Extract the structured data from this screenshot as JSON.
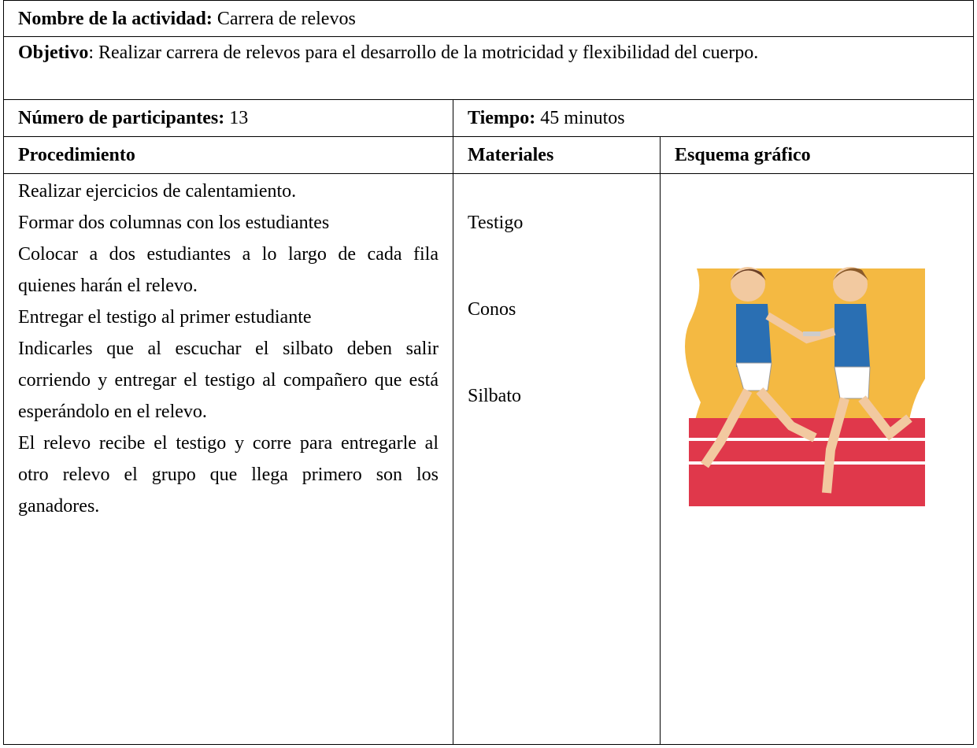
{
  "activity": {
    "name_label": "Nombre de la actividad:",
    "name": "Carrera de relevos",
    "objective_label": "Objetivo",
    "objective": ": Realizar carrera de relevos para el desarrollo de la motricidad y flexibilidad del cuerpo.",
    "participants_label": "Número de participantes:",
    "participants": "13",
    "time_label": "Tiempo:",
    "time": "45 minutos"
  },
  "table": {
    "headers": [
      "Procedimiento",
      "Materiales",
      "Esquema gráfico"
    ],
    "procedure": [
      "Realizar ejercicios de calentamiento.",
      "Formar dos columnas con los estudiantes",
      "Colocar a dos estudiantes a lo largo de cada fila quienes harán el relevo.",
      "Entregar el testigo al primer estudiante",
      "Indicarles que al escuchar el silbato deben salir corriendo y entregar el testigo al compañero que está esperándolo en el relevo.",
      "El relevo recibe el testigo y corre para entregarle al otro relevo el grupo que llega primero son los ganadores."
    ],
    "materials": [
      "Testigo",
      "Conos",
      "Silbato"
    ]
  }
}
